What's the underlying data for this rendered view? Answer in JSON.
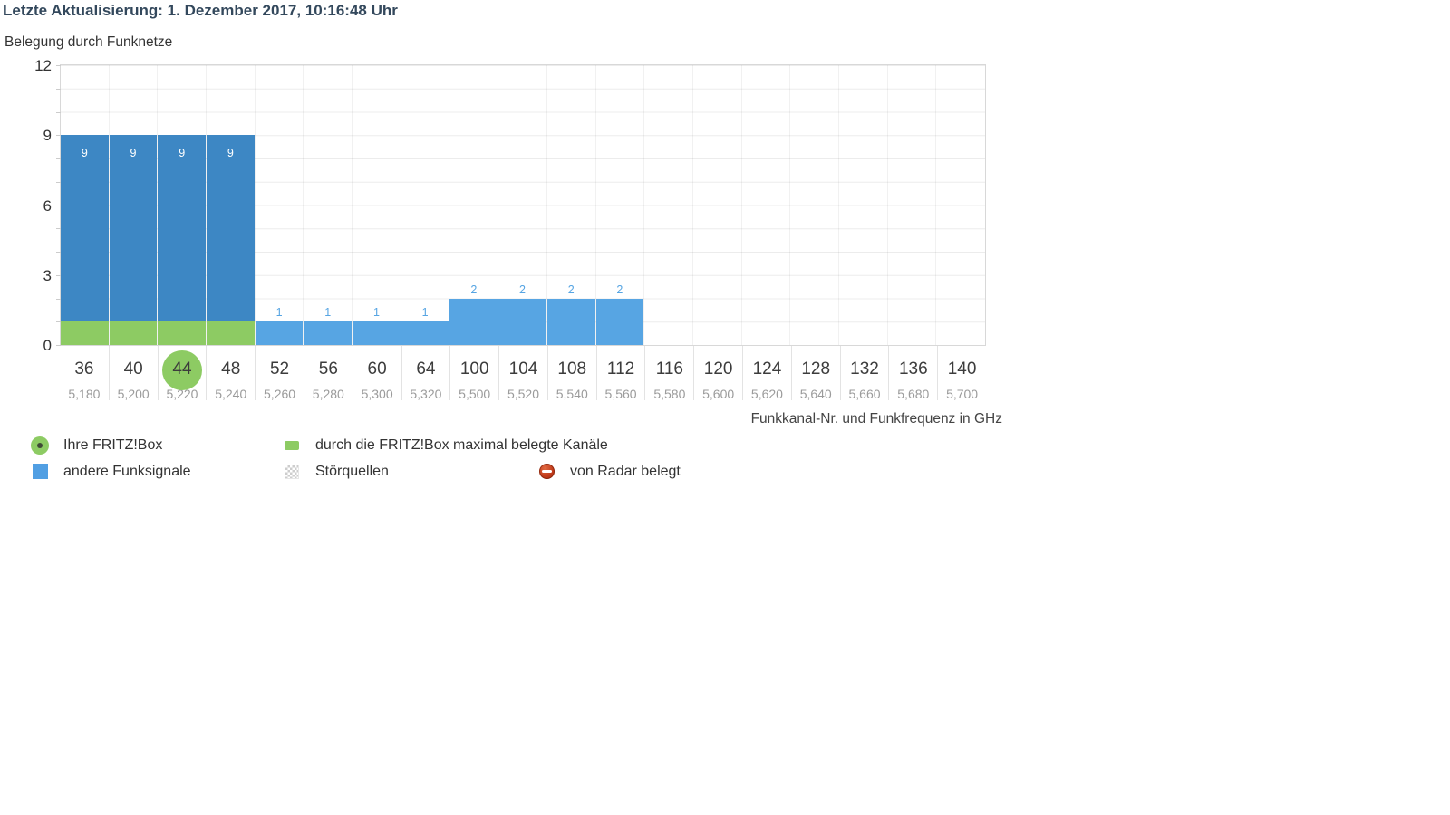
{
  "header": {
    "last_update": "Letzte Aktualisierung: 1. Dezember 2017, 10:16:48 Uhr"
  },
  "chart_data": {
    "type": "bar",
    "subtype": "stacked",
    "title": "Belegung durch Funknetze",
    "xlabel": "Funkkanal-Nr. und Funkfrequenz in GHz",
    "ylabel": "",
    "ylim": [
      0,
      12
    ],
    "yticks": [
      0,
      3,
      6,
      9,
      12
    ],
    "grid": "on",
    "selected_channel": "44",
    "colors": {
      "fritzbox_max_green": "#8dcb63",
      "occupied_dark_blue": "#3d87c4",
      "other_light_blue": "#57a5e3",
      "legend_blue": "#519fe3",
      "radar_red": "#c23c1c"
    },
    "channels": [
      {
        "nr": "36",
        "freq": "5,180",
        "green": 1,
        "dark": 8,
        "light": 0,
        "label": "9",
        "label_style": "inside",
        "selected": false
      },
      {
        "nr": "40",
        "freq": "5,200",
        "green": 1,
        "dark": 8,
        "light": 0,
        "label": "9",
        "label_style": "inside",
        "selected": false
      },
      {
        "nr": "44",
        "freq": "5,220",
        "green": 1,
        "dark": 8,
        "light": 0,
        "label": "9",
        "label_style": "inside",
        "selected": true
      },
      {
        "nr": "48",
        "freq": "5,240",
        "green": 1,
        "dark": 8,
        "light": 0,
        "label": "9",
        "label_style": "inside",
        "selected": false
      },
      {
        "nr": "52",
        "freq": "5,260",
        "green": 0,
        "dark": 0,
        "light": 1,
        "label": "1",
        "label_style": "above",
        "selected": false
      },
      {
        "nr": "56",
        "freq": "5,280",
        "green": 0,
        "dark": 0,
        "light": 1,
        "label": "1",
        "label_style": "above",
        "selected": false
      },
      {
        "nr": "60",
        "freq": "5,300",
        "green": 0,
        "dark": 0,
        "light": 1,
        "label": "1",
        "label_style": "above",
        "selected": false
      },
      {
        "nr": "64",
        "freq": "5,320",
        "green": 0,
        "dark": 0,
        "light": 1,
        "label": "1",
        "label_style": "above",
        "selected": false
      },
      {
        "nr": "100",
        "freq": "5,500",
        "green": 0,
        "dark": 0,
        "light": 2,
        "label": "2",
        "label_style": "above",
        "selected": false
      },
      {
        "nr": "104",
        "freq": "5,520",
        "green": 0,
        "dark": 0,
        "light": 2,
        "label": "2",
        "label_style": "above",
        "selected": false
      },
      {
        "nr": "108",
        "freq": "5,540",
        "green": 0,
        "dark": 0,
        "light": 2,
        "label": "2",
        "label_style": "above",
        "selected": false
      },
      {
        "nr": "112",
        "freq": "5,560",
        "green": 0,
        "dark": 0,
        "light": 2,
        "label": "2",
        "label_style": "above",
        "selected": false
      },
      {
        "nr": "116",
        "freq": "5,580",
        "green": 0,
        "dark": 0,
        "light": 0,
        "label": "",
        "label_style": "",
        "selected": false
      },
      {
        "nr": "120",
        "freq": "5,600",
        "green": 0,
        "dark": 0,
        "light": 0,
        "label": "",
        "label_style": "",
        "selected": false
      },
      {
        "nr": "124",
        "freq": "5,620",
        "green": 0,
        "dark": 0,
        "light": 0,
        "label": "",
        "label_style": "",
        "selected": false
      },
      {
        "nr": "128",
        "freq": "5,640",
        "green": 0,
        "dark": 0,
        "light": 0,
        "label": "",
        "label_style": "",
        "selected": false
      },
      {
        "nr": "132",
        "freq": "5,660",
        "green": 0,
        "dark": 0,
        "light": 0,
        "label": "",
        "label_style": "",
        "selected": false
      },
      {
        "nr": "136",
        "freq": "5,680",
        "green": 0,
        "dark": 0,
        "light": 0,
        "label": "",
        "label_style": "",
        "selected": false
      },
      {
        "nr": "140",
        "freq": "5,700",
        "green": 0,
        "dark": 0,
        "light": 0,
        "label": "",
        "label_style": "",
        "selected": false
      }
    ]
  },
  "legend": {
    "items": [
      {
        "icon": "fritzbox-circle-icon",
        "label": "Ihre FRITZ!Box"
      },
      {
        "icon": "green-square-icon",
        "label": "durch die FRITZ!Box maximal belegte Kanäle"
      },
      {
        "icon": "blue-square-icon",
        "label": "andere Funksignale"
      },
      {
        "icon": "checker-square-icon",
        "label": "Störquellen"
      },
      {
        "icon": "radar-circle-icon",
        "label": "von Radar belegt"
      }
    ]
  }
}
